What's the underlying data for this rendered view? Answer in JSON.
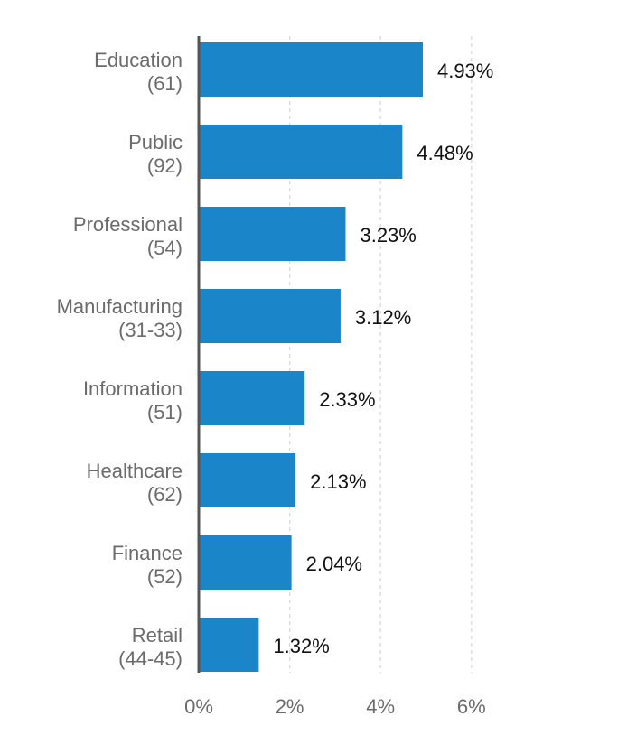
{
  "chart_data": {
    "type": "bar",
    "orientation": "horizontal",
    "categories": [
      [
        "Education",
        "(61)"
      ],
      [
        "Public",
        "(92)"
      ],
      [
        "Professional",
        "(54)"
      ],
      [
        "Manufacturing",
        "(31-33)"
      ],
      [
        "Information",
        "(51)"
      ],
      [
        "Healthcare",
        "(62)"
      ],
      [
        "Finance",
        "(52)"
      ],
      [
        "Retail",
        "(44-45)"
      ]
    ],
    "values": [
      4.93,
      4.48,
      3.23,
      3.12,
      2.33,
      2.13,
      2.04,
      1.32
    ],
    "value_labels": [
      "4.93%",
      "4.48%",
      "3.23%",
      "3.12%",
      "2.33%",
      "2.13%",
      "2.04%",
      "1.32%"
    ],
    "x_ticks": [
      0,
      2,
      4,
      6
    ],
    "x_tick_labels": [
      "0%",
      "2%",
      "4%",
      "6%"
    ],
    "xlim": [
      0,
      6.2
    ],
    "grid": "vertical-dashed",
    "legend": "none",
    "colors": {
      "bar": "#1a85c8",
      "axis": "#555555",
      "grid": "#d8d8d8"
    }
  }
}
